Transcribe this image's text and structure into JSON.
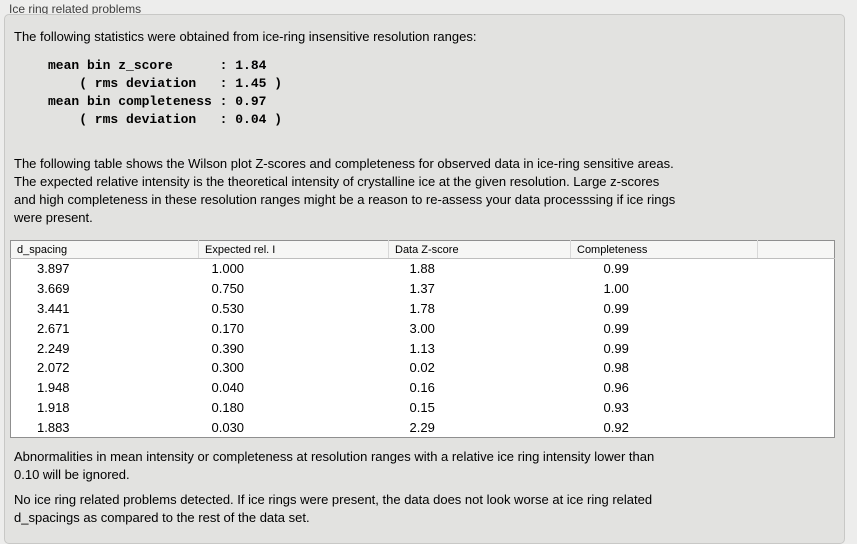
{
  "panel": {
    "title": "Ice ring related problems"
  },
  "intro_text": "The following statistics were obtained from ice-ring insensitive resolution ranges:",
  "stats_block": "mean bin z_score      : 1.84\n    ( rms deviation   : 1.45 )\nmean bin completeness : 0.97\n    ( rms deviation   : 0.04 )",
  "table_description": "The following table shows the Wilson plot Z-scores and completeness for observed data in ice-ring sensitive areas.\nThe expected relative intensity is the theoretical intensity of crystalline ice at the given resolution. Large z-scores\nand high completeness in these resolution ranges might be a reason to re-assess your data processsing if ice rings\nwere present.",
  "table": {
    "headers": [
      "d_spacing",
      "Expected rel. I",
      "Data Z-score",
      "Completeness",
      ""
    ],
    "rows": [
      [
        "3.897",
        "1.000",
        "1.88",
        "0.99"
      ],
      [
        "3.669",
        "0.750",
        "1.37",
        "1.00"
      ],
      [
        "3.441",
        "0.530",
        "1.78",
        "0.99"
      ],
      [
        "2.671",
        "0.170",
        "3.00",
        "0.99"
      ],
      [
        "2.249",
        "0.390",
        "1.13",
        "0.99"
      ],
      [
        "2.072",
        "0.300",
        "0.02",
        "0.98"
      ],
      [
        "1.948",
        "0.040",
        "0.16",
        "0.96"
      ],
      [
        "1.918",
        "0.180",
        "0.15",
        "0.93"
      ],
      [
        "1.883",
        "0.030",
        "2.29",
        "0.92"
      ]
    ]
  },
  "ignore_note": "Abnormalities in mean intensity or completeness at resolution ranges with a relative ice ring intensity lower than\n0.10 will be ignored.",
  "conclusion_text": "No ice ring related problems detected. If ice rings were present, the data does not look worse at ice ring related\nd_spacings as compared to the rest of the data set.",
  "colors": {
    "page_background": "#ededec",
    "panel_background": "#e2e2e0",
    "table_background": "#ffffff",
    "table_border": "#8f8f8f",
    "header_background": "#f6f6f5",
    "text": "#000000",
    "title_text": "#3f3f3f"
  }
}
